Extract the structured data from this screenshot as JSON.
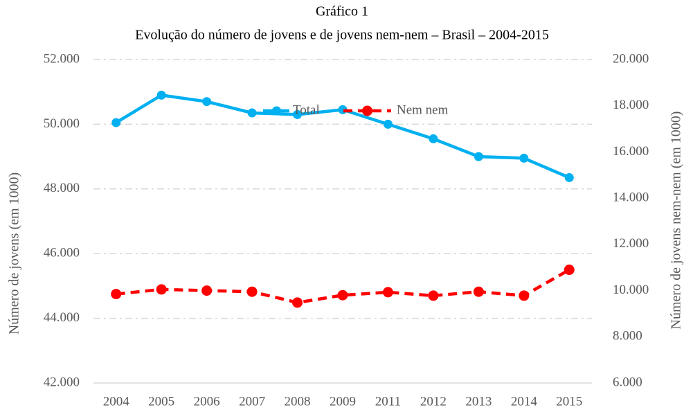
{
  "chart_data": {
    "type": "line",
    "title": "Gráfico 1",
    "subtitle": "Evolução do número de jovens e de jovens nem-nem – Brasil – 2004-2015",
    "y_label": "Número de jovens (em 1000)",
    "y2_label": "Número de jovens nem-nem (em 1000)",
    "categories": [
      "2004",
      "2005",
      "2006",
      "2007",
      "2008",
      "2009",
      "2011",
      "2012",
      "2013",
      "2014",
      "2015"
    ],
    "series": [
      {
        "name": "Total",
        "color": "#00b0f0",
        "axis": "y",
        "values": [
          50050,
          50900,
          50700,
          50350,
          50300,
          50450,
          50000,
          49550,
          49000,
          48950,
          48350
        ]
      },
      {
        "name": "Nem nem",
        "color": "#ff0000",
        "axis": "y2",
        "values": [
          9850,
          10050,
          10000,
          9950,
          9480,
          9800,
          9930,
          9780,
          9950,
          9780,
          10900
        ]
      }
    ],
    "ylim": [
      42000,
      52000
    ],
    "yticks": [
      {
        "value": 42000,
        "label": "42.000"
      },
      {
        "value": 44000,
        "label": "44.000"
      },
      {
        "value": 46000,
        "label": "46.000"
      },
      {
        "value": 48000,
        "label": "48.000"
      },
      {
        "value": 50000,
        "label": "50.000"
      },
      {
        "value": 52000,
        "label": "52.000"
      }
    ],
    "y2lim": [
      6000,
      20000
    ],
    "y2ticks": [
      {
        "value": 6000,
        "label": "6.000"
      },
      {
        "value": 8000,
        "label": "8.000"
      },
      {
        "value": 10000,
        "label": "10.000"
      },
      {
        "value": 12000,
        "label": "12.000"
      },
      {
        "value": 14000,
        "label": "14.000"
      },
      {
        "value": 16000,
        "label": "16.000"
      },
      {
        "value": 18000,
        "label": "18.000"
      },
      {
        "value": 20000,
        "label": "20.000"
      }
    ],
    "grid": true,
    "legend": "top"
  }
}
